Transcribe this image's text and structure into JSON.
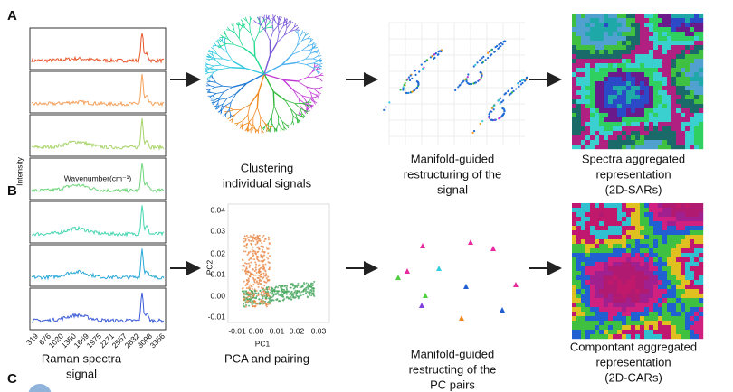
{
  "panels": {
    "a": "A",
    "b": "B",
    "c": "C"
  },
  "spectra": {
    "y_label": "Intensity",
    "x_label": "Wavenumber(cm⁻¹)",
    "x_ticks": [
      "319",
      "676",
      "1020",
      "1350",
      "1669",
      "1975",
      "2271",
      "2557",
      "2832",
      "3098",
      "3356"
    ],
    "caption": [
      "Raman spectra",
      "signal"
    ]
  },
  "clustering": {
    "caption": [
      "Clustering",
      "individual signals"
    ]
  },
  "manifold_signal": {
    "caption": [
      "Manifold-guided",
      "restructuring of the",
      "signal"
    ]
  },
  "sars": {
    "caption": [
      "Spectra aggregated",
      "representation",
      "(2D-SARs)"
    ]
  },
  "pca": {
    "x_label": "PC1",
    "y_label": "PC2",
    "x_ticks": [
      "-0.01",
      "0.00",
      "0.01",
      "0.02",
      "0.03"
    ],
    "y_ticks": [
      "0.04",
      "0.03",
      "0.02",
      "0.01",
      "0.00",
      "-0.01"
    ],
    "caption": [
      "PCA and pairing"
    ]
  },
  "manifold_pc": {
    "caption": [
      "Manifold-guided",
      "restructing of the",
      "PC pairs"
    ]
  },
  "cars": {
    "caption": [
      "Compontant aggregated",
      "representation",
      "(2D-CARs)"
    ]
  }
}
